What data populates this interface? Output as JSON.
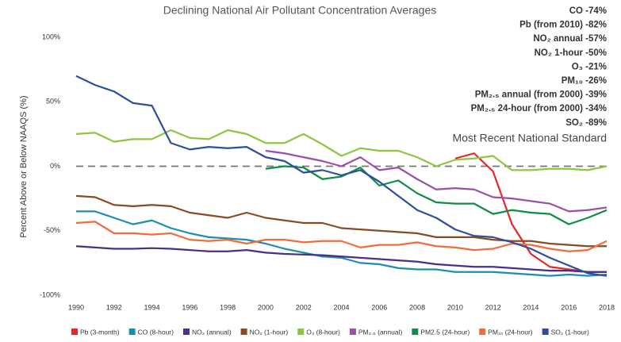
{
  "chart_data": {
    "type": "line",
    "title": "Declining National Air Pollutant Concentration Averages",
    "y_label": "Percent Above or Below NAAQS (%)",
    "annotations": [
      "CO -74%",
      "Pb (from 2010) -82%",
      "NO₂ annual -57%",
      "NO₂ 1-hour -50%",
      "O₃ -21%",
      "PM₁₀ -26%",
      "PM₂.₅ annual (from 2000) -39%",
      "PM₂.₅ 24-hour (from 2000) -34%",
      "SO₂ -89%"
    ],
    "reference_line": {
      "value": 0,
      "label": "Most Recent National Standard"
    },
    "x": [
      1990,
      1991,
      1992,
      1993,
      1994,
      1995,
      1996,
      1997,
      1998,
      1999,
      2000,
      2001,
      2002,
      2003,
      2004,
      2005,
      2006,
      2007,
      2008,
      2009,
      2010,
      2011,
      2012,
      2013,
      2014,
      2015,
      2016,
      2017,
      2018
    ],
    "xlim": [
      1990,
      2018
    ],
    "xticks": [
      1990,
      1992,
      1994,
      1996,
      1998,
      2000,
      2002,
      2004,
      2006,
      2008,
      2010,
      2012,
      2014,
      2016,
      2018
    ],
    "ylim": [
      -100,
      100
    ],
    "yticks": [
      {
        "value": 100,
        "label": "100%"
      },
      {
        "value": 50,
        "label": "50%"
      },
      {
        "value": 0,
        "label": "0%"
      },
      {
        "value": -50,
        "label": "-50%"
      },
      {
        "value": -100,
        "label": "-100%"
      }
    ],
    "grid": false,
    "legend": "bottom",
    "series": [
      {
        "name": "Pb (3-month)",
        "color": "#e8262a",
        "values": [
          null,
          null,
          null,
          null,
          null,
          null,
          null,
          null,
          null,
          null,
          null,
          null,
          null,
          null,
          null,
          null,
          null,
          null,
          null,
          null,
          6,
          10,
          -4,
          -45,
          -68,
          -78,
          -80,
          -82,
          -82
        ]
      },
      {
        "name": "CO (8-hour)",
        "color": "#1c8fb0",
        "values": [
          -35,
          -35,
          -40,
          -45,
          -42,
          -48,
          -52,
          -55,
          -56,
          -57,
          -60,
          -64,
          -67,
          -70,
          -71,
          -75,
          -76,
          -79,
          -80,
          -80,
          -82,
          -82,
          -82,
          -83,
          -84,
          -85,
          -84,
          -85,
          -84
        ]
      },
      {
        "name": "NO₂ (annual)",
        "color": "#4b2d8c",
        "values": [
          -62,
          -63,
          -64,
          -64,
          -63.5,
          -64,
          -65,
          -66,
          -66,
          -65,
          -67,
          -68,
          -68.5,
          -69,
          -70,
          -71,
          -72,
          -73,
          -74,
          -76,
          -77,
          -78,
          -78,
          -79,
          -80,
          -81,
          -81,
          -82,
          -82
        ]
      },
      {
        "name": "NO₂ (1-hour)",
        "color": "#8b4a22",
        "values": [
          -23,
          -24,
          -30,
          -31,
          -30,
          -31,
          -36,
          -38,
          -40,
          -36,
          -40,
          -42,
          -44,
          -44,
          -48,
          -49,
          -50,
          -51,
          -52,
          -55,
          -55,
          -55,
          -57,
          -58,
          -58,
          -60,
          -61,
          -62,
          -62
        ]
      },
      {
        "name": "O₃ (8-hour)",
        "color": "#8dc63f",
        "values": [
          25,
          26,
          19,
          21,
          21,
          28,
          22,
          21,
          28,
          25,
          18,
          18,
          25,
          17,
          8,
          14,
          12,
          12,
          7,
          0,
          5,
          6,
          8,
          -3,
          -3,
          -2,
          -2,
          -3,
          0
        ]
      },
      {
        "name": "PM₂.₅ (annual)",
        "color": "#9b4fa6",
        "values": [
          null,
          null,
          null,
          null,
          null,
          null,
          null,
          null,
          null,
          null,
          12,
          10,
          7,
          4,
          0,
          7,
          -3,
          -1,
          -10,
          -18,
          -17,
          -18,
          -24,
          -25,
          -27,
          -29,
          -35,
          -34,
          -32
        ]
      },
      {
        "name": "PM2.5 (24-hour)",
        "color": "#0f8d44",
        "values": [
          null,
          null,
          null,
          null,
          null,
          null,
          null,
          null,
          null,
          null,
          -2,
          0,
          -1,
          -10,
          -8,
          -1,
          -15,
          -11,
          -21,
          -28,
          -29,
          -29,
          -37,
          -34,
          -36,
          -37,
          -45,
          -40,
          -34
        ]
      },
      {
        "name": "PM₁₀ (24-hour)",
        "color": "#f26b3a",
        "values": [
          -44,
          -43,
          -52,
          -52,
          -53,
          -52,
          -57,
          -58,
          -57,
          -60,
          -57,
          -57,
          -59,
          -58,
          -58,
          -63,
          -61,
          -61,
          -59,
          -62,
          -63,
          -65,
          -64,
          -60,
          -61,
          -64,
          -66,
          -65,
          -58
        ]
      },
      {
        "name": "SO₂ (1-hour)",
        "color": "#2e4f9e",
        "values": [
          70,
          63,
          58,
          49,
          47,
          18,
          13,
          15,
          14,
          15,
          7,
          4,
          -5,
          -3,
          -7,
          -3,
          -12,
          -23,
          -34,
          -40,
          -49,
          -54,
          -55,
          -59,
          -64,
          -71,
          -77,
          -83,
          -85
        ]
      }
    ]
  }
}
